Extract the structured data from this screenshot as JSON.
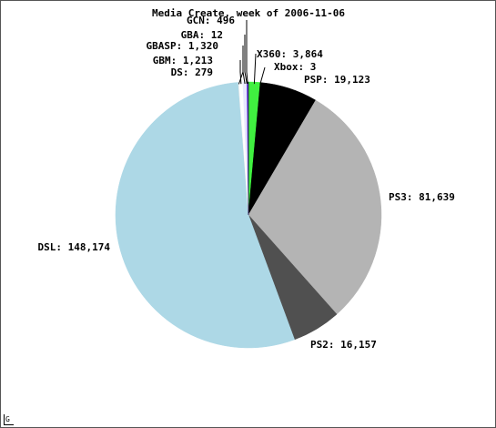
{
  "chart_data": {
    "type": "pie",
    "title": "Media Create, week of 2006-11-06",
    "slices": [
      {
        "name": "X360",
        "value": 3864,
        "label": "X360: 3,864",
        "color": "#40f040"
      },
      {
        "name": "Xbox",
        "value": 3,
        "label": "Xbox: 3",
        "color": "#00a000"
      },
      {
        "name": "PSP",
        "value": 19123,
        "label": "PSP: 19,123",
        "color": "#000000"
      },
      {
        "name": "PS3",
        "value": 81639,
        "label": "PS3: 81,639",
        "color": "#b4b4b4"
      },
      {
        "name": "PS2",
        "value": 16157,
        "label": "PS2: 16,157",
        "color": "#505050"
      },
      {
        "name": "DSL",
        "value": 148174,
        "label": "DSL: 148,174",
        "color": "#add8e6"
      },
      {
        "name": "DS",
        "value": 279,
        "label": "DS: 279",
        "color": "#f0f0f0"
      },
      {
        "name": "GBM",
        "value": 1213,
        "label": "GBM: 1,213",
        "color": "#ffffff"
      },
      {
        "name": "GBASP",
        "value": 1320,
        "label": "GBASP: 1,320",
        "color": "#e8e8ff"
      },
      {
        "name": "GBA",
        "value": 12,
        "label": "GBA: 12",
        "color": "#9090ff"
      },
      {
        "name": "GCN",
        "value": 496,
        "label": "GCN: 496",
        "color": "#6a3fd6"
      }
    ]
  },
  "logo_text": "G"
}
